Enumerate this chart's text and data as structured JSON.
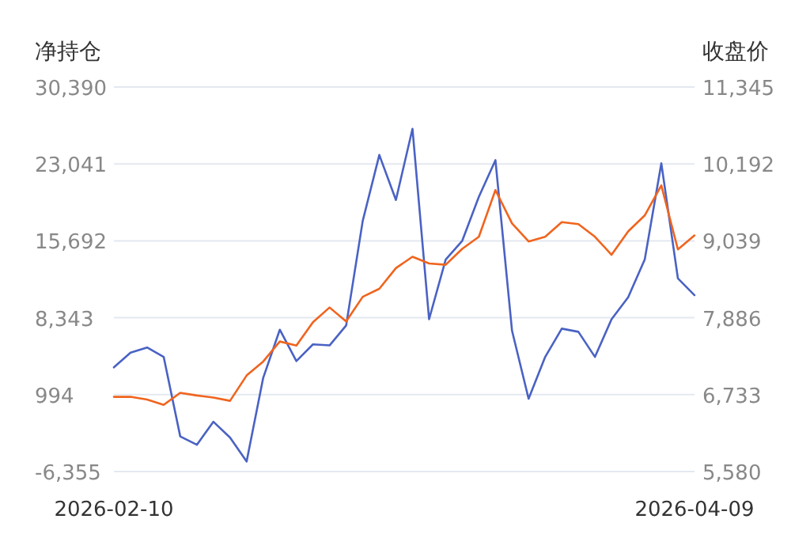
{
  "chart_data": {
    "type": "line",
    "ylabel": "净持仓",
    "y2label": "收盘价",
    "categories": [
      "2026-02-10",
      null,
      null,
      null,
      null,
      null,
      null,
      null,
      null,
      null,
      null,
      null,
      null,
      null,
      null,
      null,
      null,
      null,
      null,
      null,
      null,
      null,
      null,
      null,
      null,
      null,
      null,
      null,
      null,
      null,
      null,
      null,
      null,
      null,
      null,
      "2026-04-09"
    ],
    "ylim": [
      -6355,
      30390
    ],
    "yticks": [
      {
        "value": -6355,
        "label": "-6,355"
      },
      {
        "value": 994,
        "label": "994"
      },
      {
        "value": 8343,
        "label": "8,343"
      },
      {
        "value": 15692,
        "label": "15,692"
      },
      {
        "value": 23041,
        "label": "23,041"
      },
      {
        "value": 30390,
        "label": "30,390"
      }
    ],
    "y2lim": [
      5580,
      11345
    ],
    "y2ticks": [
      {
        "value": 5580,
        "label": "5,580"
      },
      {
        "value": 6733,
        "label": "6,733"
      },
      {
        "value": 7886,
        "label": "7,886"
      },
      {
        "value": 9039,
        "label": "9,039"
      },
      {
        "value": 10192,
        "label": "10,192"
      },
      {
        "value": 11345,
        "label": "11,345"
      }
    ],
    "grid": "y",
    "series": [
      {
        "color": "#4a62c4",
        "axis": "y",
        "values": [
          3600,
          5000,
          5500,
          4600,
          -3000,
          -3800,
          -1600,
          -3100,
          -5400,
          2600,
          7200,
          4200,
          5800,
          5700,
          7600,
          17600,
          23900,
          19600,
          26400,
          8200,
          13900,
          15700,
          19900,
          23400,
          7100,
          600,
          4600,
          7300,
          7000,
          4600,
          8200,
          10300,
          13900,
          23100,
          12100,
          10500
        ]
      },
      {
        "color": "#f0641e",
        "axis": "y2",
        "values": [
          6700,
          6700,
          6660,
          6580,
          6760,
          6720,
          6690,
          6640,
          7020,
          7230,
          7530,
          7470,
          7820,
          8040,
          7830,
          8200,
          8320,
          8630,
          8800,
          8700,
          8680,
          8920,
          9100,
          9800,
          9300,
          9030,
          9100,
          9320,
          9290,
          9100,
          8830,
          9180,
          9420,
          9870,
          8910,
          9120
        ]
      }
    ]
  }
}
